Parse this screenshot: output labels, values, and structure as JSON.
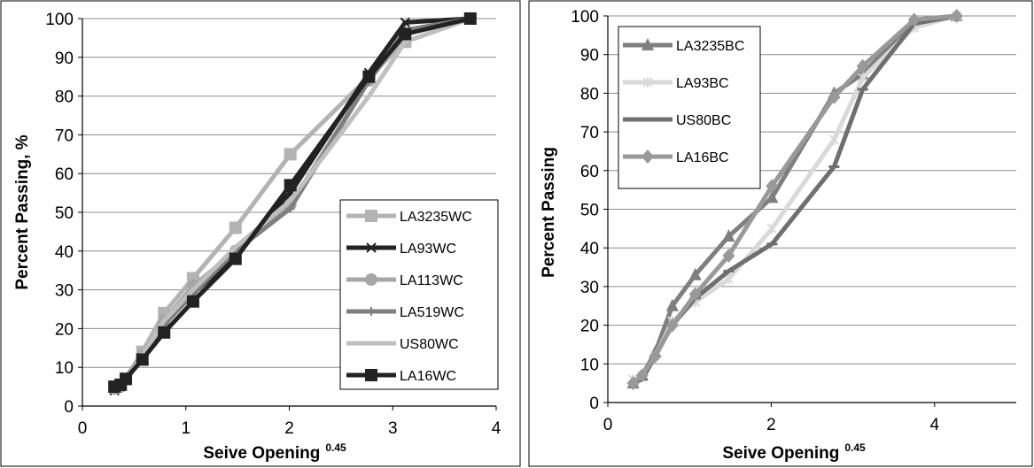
{
  "chart_data": [
    {
      "type": "line",
      "title": "",
      "xlabel": "Seive Opening",
      "xlabel_sup": "0.45",
      "ylabel": "Percent Passing, %",
      "xlim": [
        0,
        4
      ],
      "ylim": [
        0,
        100
      ],
      "x_ticks": [
        "0",
        "1",
        "2",
        "3",
        "4"
      ],
      "y_ticks": [
        "0",
        "10",
        "20",
        "30",
        "40",
        "50",
        "60",
        "70",
        "80",
        "90",
        "100"
      ],
      "grid": "horizontal",
      "legend": "right",
      "series": [
        {
          "name": "LA3235WC",
          "color": "#b3b3b3",
          "marker": "square",
          "x": [
            0.31,
            0.37,
            0.42,
            0.58,
            0.79,
            1.07,
            1.48,
            2.01,
            2.77,
            3.12,
            3.75
          ],
          "y": [
            5,
            5.5,
            7,
            14,
            24,
            33,
            46,
            65,
            85,
            94,
            100
          ]
        },
        {
          "name": "LA93WC",
          "color": "#222222",
          "marker": "x",
          "x": [
            0.31,
            0.37,
            0.42,
            0.58,
            0.79,
            1.07,
            1.48,
            2.01,
            2.77,
            3.12,
            3.75
          ],
          "y": [
            4,
            5,
            7.5,
            12,
            21,
            29,
            39,
            55,
            86,
            99,
            100
          ]
        },
        {
          "name": "LA113WC",
          "color": "#a6a6a6",
          "marker": "circle",
          "x": [
            0.31,
            0.37,
            0.42,
            0.58,
            0.79,
            1.07,
            1.48,
            2.01,
            2.77,
            3.12,
            3.75
          ],
          "y": [
            4.5,
            5,
            7,
            13,
            22,
            31,
            40,
            52,
            84,
            96,
            100
          ]
        },
        {
          "name": "LA519WC",
          "color": "#7f7f7f",
          "marker": "plus",
          "x": [
            0.31,
            0.37,
            0.42,
            0.58,
            0.79,
            1.07,
            1.48,
            2.01,
            2.77,
            3.12,
            3.75
          ],
          "y": [
            5,
            5.5,
            7.5,
            13,
            21,
            29,
            40,
            51,
            84,
            97,
            100
          ]
        },
        {
          "name": "US80WC",
          "color": "#bfbfbf",
          "marker": "none",
          "x": [
            0.31,
            0.37,
            0.42,
            0.58,
            0.79,
            1.07,
            1.48,
            2.01,
            2.77,
            3.12,
            3.75
          ],
          "y": [
            5,
            5.5,
            7,
            13,
            22,
            30,
            41,
            53,
            80,
            94,
            100
          ]
        },
        {
          "name": "LA16WC",
          "color": "#222222",
          "marker": "square",
          "x": [
            0.31,
            0.37,
            0.42,
            0.58,
            0.79,
            1.07,
            1.48,
            2.01,
            2.77,
            3.12,
            3.75
          ],
          "y": [
            5,
            5.5,
            7,
            12,
            19,
            27,
            38,
            57,
            85,
            96,
            100
          ]
        }
      ]
    },
    {
      "type": "line",
      "title": "",
      "xlabel": "Seive Opening",
      "xlabel_sup": "0.45",
      "ylabel": "Percent Passing",
      "xlim": [
        0,
        5
      ],
      "ylim": [
        0,
        100
      ],
      "x_ticks": [
        "0",
        "2",
        "4"
      ],
      "y_ticks": [
        "0",
        "10",
        "20",
        "30",
        "40",
        "50",
        "60",
        "70",
        "80",
        "90",
        "100"
      ],
      "grid": "horizontal",
      "legend": "top-left",
      "series": [
        {
          "name": "LA3235BC",
          "color": "#7f7f7f",
          "marker": "triangle",
          "x": [
            0.31,
            0.42,
            0.58,
            0.79,
            1.07,
            1.48,
            2.01,
            2.77,
            3.12,
            3.75,
            4.27
          ],
          "y": [
            5,
            7,
            13,
            25,
            33,
            43,
            53,
            80,
            85,
            99,
            100
          ]
        },
        {
          "name": "LA93BC",
          "color": "#d9d9d9",
          "marker": "star",
          "x": [
            0.31,
            0.42,
            0.58,
            0.79,
            1.07,
            1.48,
            2.01,
            2.77,
            3.12,
            3.75,
            4.27
          ],
          "y": [
            6,
            7,
            12,
            21,
            26,
            32,
            45,
            68,
            84,
            97,
            100
          ]
        },
        {
          "name": "US80BC",
          "color": "#6f6f6f",
          "marker": "dash",
          "x": [
            0.31,
            0.42,
            0.58,
            0.79,
            1.07,
            1.48,
            2.01,
            2.77,
            3.12,
            3.75,
            4.27
          ],
          "y": [
            5,
            6,
            12,
            20,
            27,
            34,
            41,
            61,
            81,
            98,
            100
          ]
        },
        {
          "name": "LA16BC",
          "color": "#999999",
          "marker": "diamond",
          "x": [
            0.31,
            0.42,
            0.58,
            0.79,
            1.07,
            1.48,
            2.01,
            2.77,
            3.12,
            3.75,
            4.27
          ],
          "y": [
            5,
            7,
            12,
            20,
            28,
            38,
            56,
            79,
            87,
            99,
            100
          ]
        }
      ]
    }
  ]
}
